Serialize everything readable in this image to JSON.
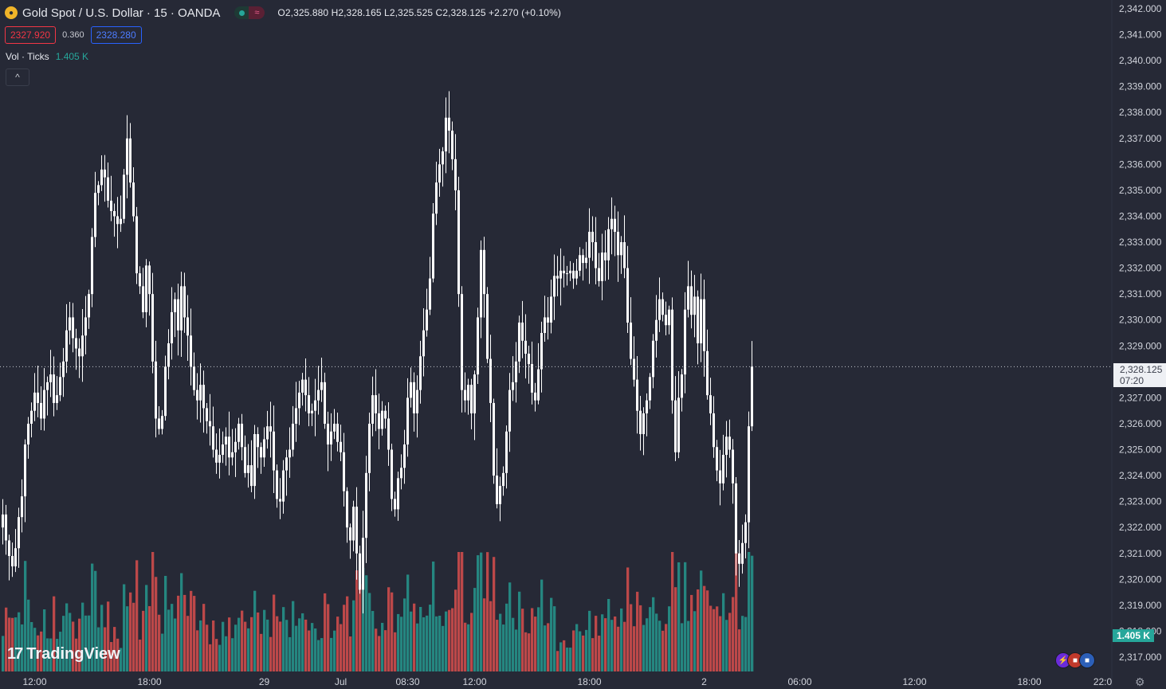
{
  "header": {
    "title": "Gold Spot / U.S. Dollar · 15 · OANDA",
    "ohlc": "O2,325.880 H2,328.165 L2,325.525 C2,328.125 +2.270 (+0.10%)",
    "bid": "2327.920",
    "spread": "0.360",
    "ask": "2328.280",
    "session_open_icon": "dot-icon",
    "session_closed_icon": "wave-icon"
  },
  "indicator": {
    "name": "Vol · Ticks",
    "value": "1.405 K",
    "collapse_icon": "chevron-up-icon",
    "collapse_glyph": "^"
  },
  "price_tag": {
    "price": "2,328.125",
    "countdown": "07:20"
  },
  "volume_tag": "1.405 K",
  "branding": {
    "logo": "TradingView",
    "mark": "17"
  },
  "colors": {
    "up": "#26a69a",
    "down": "#ef5350",
    "candle": "#ffffff",
    "background": "#262936"
  },
  "chart_data": {
    "type": "candlestick",
    "instrument": "Gold Spot / U.S. Dollar",
    "interval": "15",
    "ylim": [
      2317.0,
      2342.0
    ],
    "y_ticks": [
      "2,342.000",
      "2,341.000",
      "2,340.000",
      "2,339.000",
      "2,338.000",
      "2,337.000",
      "2,336.000",
      "2,335.000",
      "2,334.000",
      "2,333.000",
      "2,332.000",
      "2,331.000",
      "2,330.000",
      "2,329.000",
      "2,328.000",
      "2,327.000",
      "2,326.000",
      "2,325.000",
      "2,324.000",
      "2,323.000",
      "2,322.000",
      "2,321.000",
      "2,320.000",
      "2,319.000",
      "2,318.000",
      "2,317.000"
    ],
    "x_ticks": [
      {
        "label": "12:00",
        "i": 10
      },
      {
        "label": "18:00",
        "i": 46
      },
      {
        "label": "29",
        "i": 82
      },
      {
        "label": "Jul",
        "i": 106
      },
      {
        "label": "08:30",
        "i": 127
      },
      {
        "label": "12:00",
        "i": 148
      },
      {
        "label": "18:00",
        "i": 184
      },
      {
        "label": "2",
        "i": 220
      },
      {
        "label": "06:00",
        "i": 250
      },
      {
        "label": "12:00",
        "i": 286
      },
      {
        "label": "18:00",
        "i": 322
      },
      {
        "label": "22:0",
        "i": 345
      }
    ],
    "close": [
      2322.5,
      2321.5,
      2320.9,
      2320.5,
      2321.2,
      2322.4,
      2323.2,
      2325.2,
      2326.0,
      2326.5,
      2327.2,
      2326.8,
      2326.2,
      2327.3,
      2327.6,
      2327.9,
      2326.8,
      2327.1,
      2327.8,
      2328.4,
      2329.6,
      2330.1,
      2329.3,
      2328.9,
      2328.6,
      2329.4,
      2330.1,
      2331.0,
      2333.2,
      2334.9,
      2335.2,
      2335.8,
      2335.5,
      2334.6,
      2334.2,
      2334.0,
      2333.7,
      2333.9,
      2335.6,
      2337.0,
      2335.3,
      2334.0,
      2331.8,
      2331.3,
      2330.3,
      2332.1,
      2331.0,
      2328.4,
      2326.2,
      2325.8,
      2326.3,
      2328.2,
      2329.1,
      2330.3,
      2330.8,
      2329.6,
      2331.3,
      2330.1,
      2329.4,
      2328.2,
      2327.3,
      2326.9,
      2327.5,
      2326.6,
      2326.1,
      2325.9,
      2325.0,
      2324.5,
      2324.8,
      2325.2,
      2325.5,
      2324.7,
      2324.9,
      2325.3,
      2326.0,
      2325.1,
      2324.1,
      2324.4,
      2323.6,
      2325.6,
      2325.1,
      2324.7,
      2325.4,
      2325.9,
      2325.7,
      2324.2,
      2323.1,
      2323.0,
      2324.2,
      2324.7,
      2325.0,
      2326.0,
      2326.6,
      2327.2,
      2327.7,
      2327.1,
      2326.4,
      2326.5,
      2326.9,
      2327.3,
      2327.6,
      2326.0,
      2325.2,
      2325.7,
      2326.0,
      2325.3,
      2324.9,
      2323.4,
      2322.0,
      2321.5,
      2322.8,
      2321.0,
      2319.6,
      2321.6,
      2324.1,
      2326.0,
      2327.1,
      2326.4,
      2325.8,
      2326.5,
      2326.2,
      2325.0,
      2323.1,
      2322.7,
      2323.9,
      2324.3,
      2325.2,
      2327.0,
      2327.6,
      2326.4,
      2327.3,
      2328.6,
      2329.6,
      2330.4,
      2331.6,
      2334.1,
      2335.3,
      2336.0,
      2336.5,
      2337.8,
      2337.3,
      2336.2,
      2335.0,
      2331.0,
      2327.3,
      2326.9,
      2327.5,
      2326.4,
      2327.9,
      2330.1,
      2332.7,
      2331.0,
      2328.5,
      2326.8,
      2324.0,
      2322.9,
      2323.6,
      2324.1,
      2325.7,
      2327.3,
      2327.6,
      2328.4,
      2329.9,
      2329.2,
      2328.7,
      2328.3,
      2327.2,
      2326.9,
      2328.1,
      2329.5,
      2330.1,
      2329.9,
      2330.9,
      2331.7,
      2331.6,
      2331.9,
      2331.8,
      2331.8,
      2331.9,
      2331.6,
      2331.9,
      2332.5,
      2332.2,
      2332.4,
      2333.4,
      2333.0,
      2332.0,
      2331.5,
      2332.6,
      2332.3,
      2333.5,
      2333.9,
      2333.4,
      2332.5,
      2333.0,
      2332.0,
      2329.9,
      2328.5,
      2327.7,
      2326.5,
      2325.6,
      2326.4,
      2326.9,
      2327.8,
      2329.2,
      2330.0,
      2330.8,
      2330.2,
      2329.8,
      2330.4,
      2326.9,
      2324.9,
      2327.0,
      2327.9,
      2330.4,
      2331.3,
      2330.2,
      2330.9,
      2329.1,
      2330.8,
      2328.8,
      2327.1,
      2326.4,
      2325.1,
      2324.2,
      2323.7,
      2324.8,
      2325.5,
      2325.0,
      2323.7,
      2321.0,
      2320.6,
      2321.4,
      2322.2,
      2325.9,
      2328.2
    ]
  }
}
